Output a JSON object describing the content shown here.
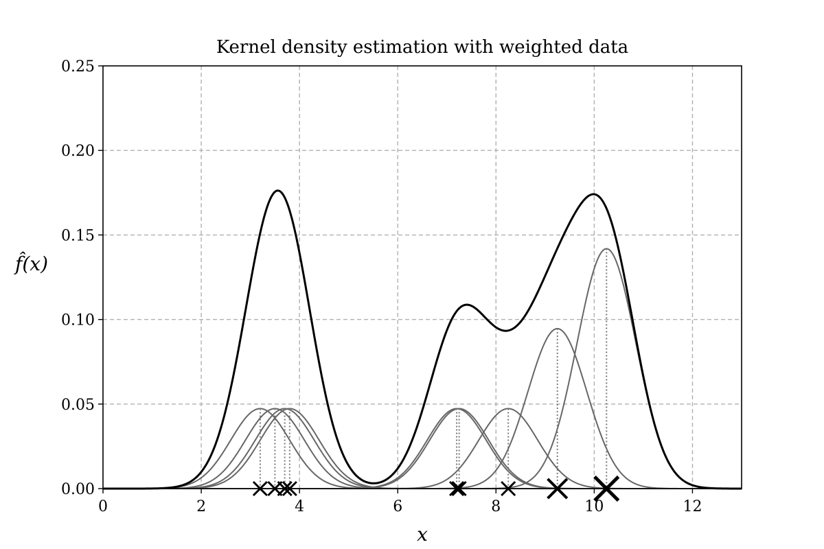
{
  "chart_data": {
    "type": "line",
    "title": "Kernel density estimation with weighted data",
    "xlabel": "x",
    "ylabel": "f̂(x)",
    "xlim": [
      0,
      13
    ],
    "ylim": [
      0,
      0.25
    ],
    "xticks": [
      0,
      2,
      4,
      6,
      8,
      10,
      12
    ],
    "xtick_labels": [
      "0",
      "2",
      "4",
      "6",
      "8",
      "10",
      "12"
    ],
    "yticks": [
      0,
      0.05,
      0.1,
      0.15,
      0.2,
      0.25
    ],
    "ytick_labels": [
      "0.00",
      "0.05",
      "0.10",
      "0.15",
      "0.20",
      "0.25"
    ],
    "grid": true,
    "kernel": "gaussian",
    "bandwidth": 0.6,
    "data_points": [
      {
        "x": 3.2,
        "weight": 1
      },
      {
        "x": 3.5,
        "weight": 1
      },
      {
        "x": 3.7,
        "weight": 1
      },
      {
        "x": 3.8,
        "weight": 1
      },
      {
        "x": 7.2,
        "weight": 1
      },
      {
        "x": 7.25,
        "weight": 1
      },
      {
        "x": 8.25,
        "weight": 1
      },
      {
        "x": 9.25,
        "weight": 2
      },
      {
        "x": 10.25,
        "weight": 3
      }
    ],
    "component_peak_unit": 0.0473,
    "curve_color": "#000000",
    "component_color": "#666666",
    "grid_color": "#b0b0b0"
  }
}
